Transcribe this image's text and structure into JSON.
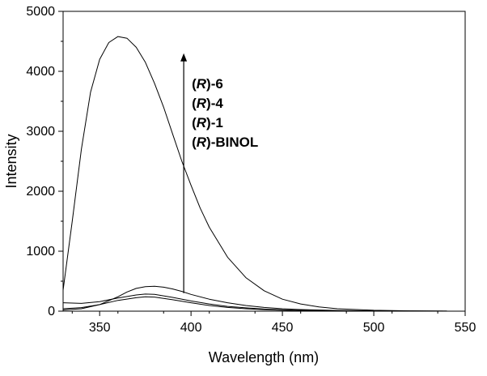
{
  "chart_data": {
    "type": "line",
    "title": "",
    "xlabel": "Wavelength (nm)",
    "ylabel": "Intensity",
    "xlim": [
      330,
      550
    ],
    "ylim": [
      0,
      5000
    ],
    "x_ticks": [
      350,
      400,
      450,
      500,
      550
    ],
    "y_ticks": [
      0,
      1000,
      2000,
      3000,
      4000,
      5000
    ],
    "grid": false,
    "annotation": {
      "arrow": {
        "x": 396,
        "y_from": 300,
        "y_to": 4300
      },
      "labels": [
        {
          "prefix": "(",
          "italic": "R",
          "suffix": ")-6"
        },
        {
          "prefix": "(",
          "italic": "R",
          "suffix": ")-4"
        },
        {
          "prefix": "(",
          "italic": "R",
          "suffix": ")-1"
        },
        {
          "prefix": "(",
          "italic": "R",
          "suffix": ")-BINOL"
        }
      ]
    },
    "series": [
      {
        "x": [
          330,
          335,
          340,
          345,
          350,
          355,
          360,
          365,
          370,
          375,
          380,
          385,
          390,
          395,
          400,
          405,
          410,
          420,
          430,
          440,
          450,
          460,
          470,
          480,
          500,
          520,
          540
        ],
        "values": [
          350,
          1500,
          2700,
          3650,
          4200,
          4480,
          4580,
          4550,
          4400,
          4150,
          3800,
          3400,
          2950,
          2500,
          2100,
          1720,
          1400,
          900,
          560,
          340,
          200,
          120,
          70,
          40,
          15,
          6,
          2
        ]
      },
      {
        "x": [
          330,
          340,
          350,
          360,
          365,
          370,
          375,
          380,
          385,
          390,
          395,
          400,
          410,
          420,
          430,
          440,
          450,
          460,
          480,
          500,
          520,
          540
        ],
        "values": [
          20,
          40,
          110,
          240,
          320,
          380,
          410,
          415,
          400,
          370,
          330,
          280,
          200,
          140,
          95,
          62,
          40,
          27,
          12,
          5,
          2,
          1
        ]
      },
      {
        "x": [
          330,
          340,
          350,
          360,
          370,
          375,
          380,
          390,
          400,
          410,
          420,
          430,
          440,
          450,
          460,
          480,
          500,
          520,
          540
        ],
        "values": [
          140,
          130,
          160,
          220,
          270,
          285,
          280,
          230,
          170,
          120,
          80,
          55,
          35,
          22,
          14,
          6,
          3,
          1,
          0
        ]
      },
      {
        "x": [
          330,
          340,
          350,
          360,
          370,
          375,
          380,
          390,
          400,
          410,
          420,
          430,
          440,
          450,
          460,
          480,
          500,
          520,
          540
        ],
        "values": [
          40,
          60,
          110,
          180,
          225,
          240,
          235,
          190,
          140,
          95,
          62,
          40,
          26,
          16,
          10,
          4,
          2,
          1,
          0
        ]
      }
    ]
  }
}
